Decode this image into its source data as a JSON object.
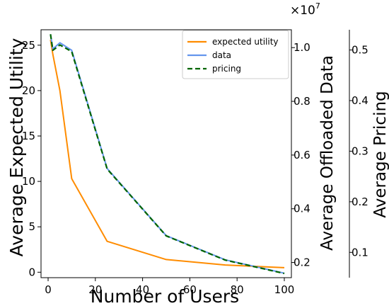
{
  "chart_data": {
    "type": "line",
    "xlabel": "Number of Users",
    "ylabel": "Average Expected Utility",
    "y2label": "Average Offloaded Data",
    "y3label": "Average Pricing",
    "y2_multiplier": "×10",
    "y2_multiplier_exp": "7",
    "xlim": [
      -3,
      103
    ],
    "ylim": [
      -0.6,
      26.7
    ],
    "y2lim": [
      0.1435,
      1.0665
    ],
    "y3lim": [
      0.05,
      0.54
    ],
    "xticks": [
      0,
      20,
      40,
      60,
      80,
      100
    ],
    "yticks": [
      0,
      5,
      10,
      15,
      20,
      25
    ],
    "y2ticks": [
      0.2,
      0.4,
      0.6,
      0.8,
      1.0
    ],
    "y3ticks": [
      0.1,
      0.2,
      0.3,
      0.4,
      0.5
    ],
    "legend_position": "top-right",
    "series": [
      {
        "name": "expected utility",
        "axis": "left",
        "color": "#ff8c00",
        "style": "solid",
        "x": [
          1,
          2,
          5,
          10,
          25,
          50,
          75,
          100
        ],
        "y": [
          25.6,
          24.0,
          20.0,
          10.3,
          3.4,
          1.4,
          0.8,
          0.5
        ]
      },
      {
        "name": "data",
        "axis": "right",
        "color": "#6495ed",
        "style": "solid",
        "x": [
          1,
          2,
          5,
          10,
          25,
          50,
          75,
          100
        ],
        "y": [
          1.05,
          0.995,
          1.018,
          0.99,
          0.55,
          0.3,
          0.21,
          0.16
        ]
      },
      {
        "name": "pricing",
        "axis": "right",
        "color": "#006400",
        "style": "dashed",
        "x": [
          1,
          2,
          5,
          10,
          25,
          50,
          75,
          100
        ],
        "y": [
          1.05,
          0.99,
          1.01,
          0.985,
          0.548,
          0.299,
          0.209,
          0.159
        ]
      }
    ]
  }
}
